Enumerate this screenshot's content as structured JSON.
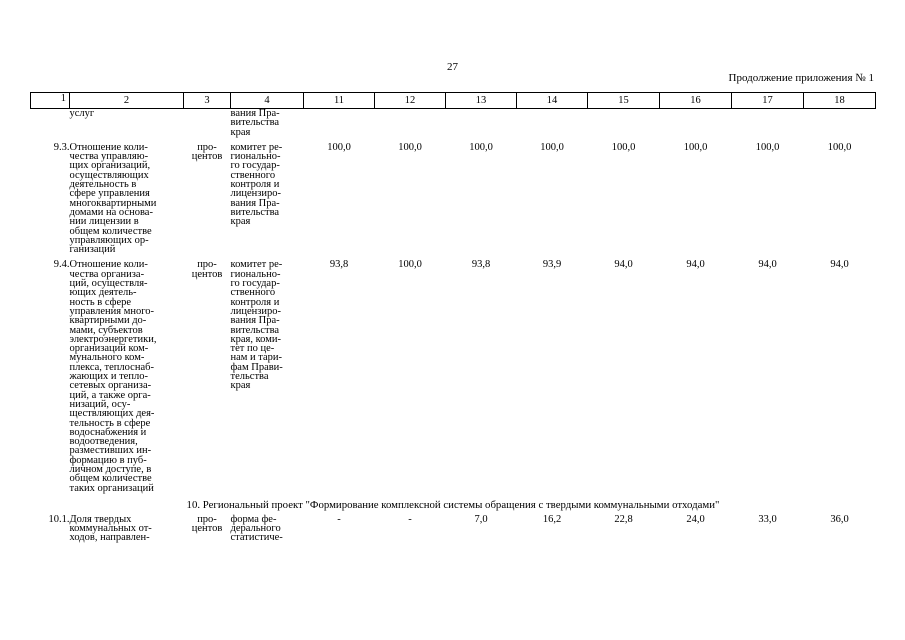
{
  "header": {
    "page_number": "27",
    "continuation": "Продолжение приложения № 1"
  },
  "table": {
    "columns": [
      "1",
      "2",
      "3",
      "4",
      "11",
      "12",
      "13",
      "14",
      "15",
      "16",
      "17",
      "18"
    ],
    "continued_row": {
      "name": "услуг",
      "responsible": "вания Пра-\nвительства\nкрая"
    },
    "rows": [
      {
        "num": "9.3.",
        "name": "Отношение коли-\nчества управляю-\nщих организаций,\nосуществляющих\nдеятельность в\nсфере управления\nмногоквартирными\nдомами на основа-\nнии лицензии в\nобщем количестве\nуправляющих ор-\nганизаций",
        "unit": "про-\nцентов",
        "responsible": "комитет ре-\nгионально-\nго государ-\nственного\nконтроля и\nлицензиро-\nвания Пра-\nвительства\nкрая",
        "values": [
          "100,0",
          "100,0",
          "100,0",
          "100,0",
          "100,0",
          "100,0",
          "100,0",
          "100,0"
        ]
      },
      {
        "num": "9.4.",
        "name": "Отношение коли-\nчества организа-\nций, осуществля-\nющих деятель-\nность в сфере\nуправления много-\nквартирными до-\nмами, субъектов\nэлектроэнергетики,\nорганизаций ком-\nмунального ком-\nплекса, теплоснаб-\nжающих и тепло-\nсетевых организа-\nций, а также орга-\nнизаций, осу-\nществляющих дея-\nтельность в сфере\nводоснабжения и\nводоотведения,\nразместивших ин-\nформацию в пуб-\nличном доступе, в\nобщем количестве\nтаких организаций",
        "unit": "про-\nцентов",
        "responsible": "комитет ре-\nгионально-\nго государ-\nственного\nконтроля и\nлицензиро-\nвания Пра-\nвительства\nкрая, коми-\nтет по це-\nнам и тари-\nфам Прави-\nтельства\nкрая",
        "values": [
          "93,8",
          "100,0",
          "93,8",
          "93,9",
          "94,0",
          "94,0",
          "94,0",
          "94,0"
        ]
      }
    ],
    "section_title": "10. Региональный проект \"Формирование комплексной системы обращения с твердыми коммунальными отходами\"",
    "last_row": {
      "num": "10.1.",
      "name": "Доля твердых\nкоммунальных от-\nходов, направлен-",
      "unit": "про-\nцентов",
      "responsible": "форма фе-\nдерального\nстатистиче-",
      "values": [
        "-",
        "-",
        "7,0",
        "16,2",
        "22,8",
        "24,0",
        "33,0",
        "36,0"
      ]
    }
  }
}
